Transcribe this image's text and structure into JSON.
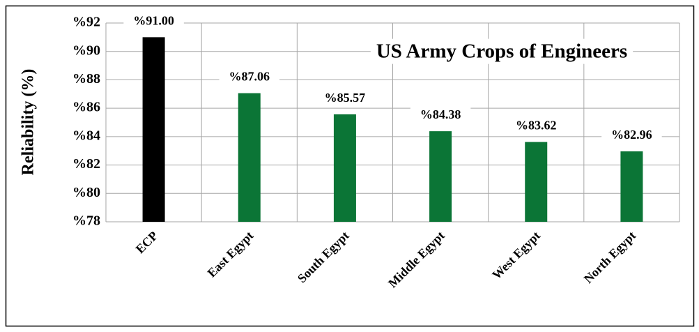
{
  "chart_data": {
    "type": "bar",
    "title": "US Army Crops of Engineers",
    "y_label": "Reliability (%)",
    "categories": [
      "ECP",
      "East Egypt",
      "South Egypt",
      "Middle Egypt",
      "West Egypt",
      "North Egypt"
    ],
    "values": [
      91.0,
      87.06,
      85.57,
      84.38,
      83.62,
      82.96
    ],
    "value_labels": [
      "%91.00",
      "%87.06",
      "%85.57",
      "%84.38",
      "%83.62",
      "%82.96"
    ],
    "colors": [
      "#000000",
      "#0b7536",
      "#0b7536",
      "#0b7536",
      "#0b7536",
      "#0b7536"
    ],
    "ylim": [
      78,
      92
    ],
    "yticks": [
      {
        "value": 78,
        "label": "%78"
      },
      {
        "value": 80,
        "label": "%80"
      },
      {
        "value": 82,
        "label": "%82"
      },
      {
        "value": 84,
        "label": "%84"
      },
      {
        "value": 86,
        "label": "%86"
      },
      {
        "value": 88,
        "label": "%88"
      },
      {
        "value": 90,
        "label": "%90"
      },
      {
        "value": 92,
        "label": "%92"
      }
    ],
    "grid": true
  }
}
